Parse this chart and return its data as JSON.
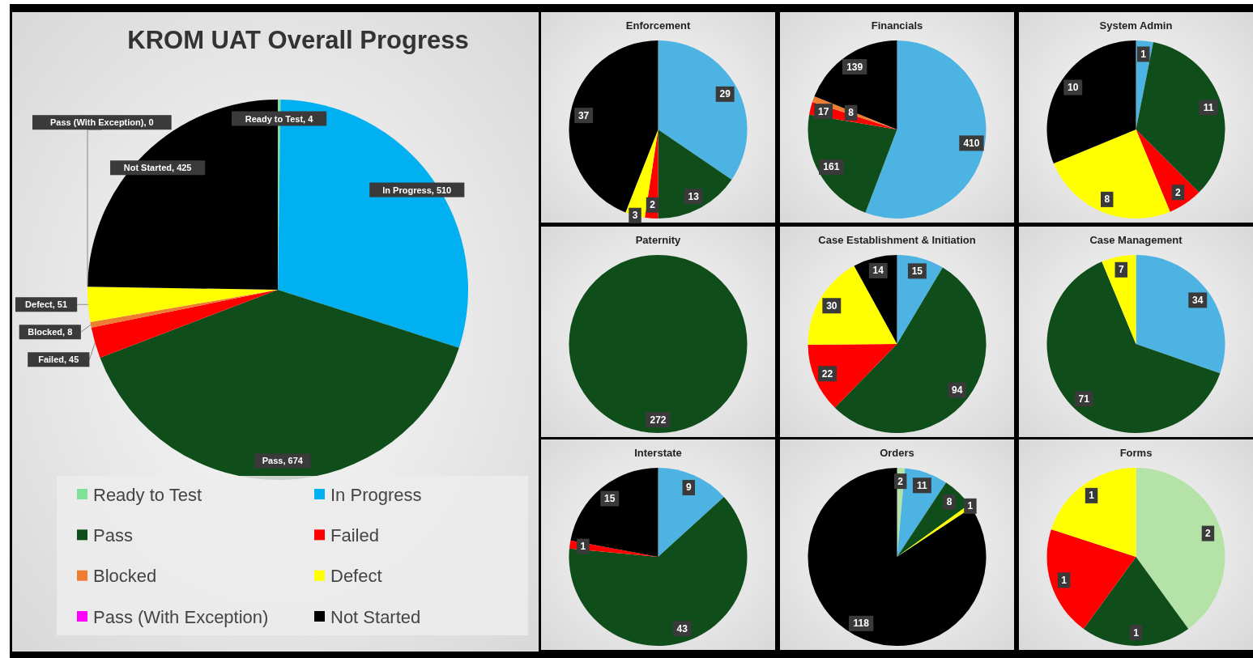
{
  "chart_data": [
    {
      "type": "pie",
      "title": "KROM UAT Overall Progress",
      "categories": [
        "Ready to Test",
        "In Progress",
        "Pass",
        "Failed",
        "Blocked",
        "Defect",
        "Pass (With Exception)",
        "Not Started"
      ],
      "values": [
        4,
        510,
        674,
        45,
        8,
        51,
        0,
        425
      ],
      "value_labels": [
        "Ready to Test, 4",
        "In Progress, 510",
        "Pass, 674",
        "Failed, 45",
        "Blocked, 8",
        "Defect, 51",
        "Pass (With Exception), 0",
        "Not Started, 425"
      ],
      "colors": [
        "#7fe09a",
        "#00b0f0",
        "#0f4d1a",
        "#ff0000",
        "#ed7d31",
        "#ffff00",
        "#ff00ff",
        "#000000"
      ],
      "legend": "bottom"
    },
    {
      "type": "pie",
      "title": "Enforcement",
      "categories": [
        null,
        null,
        null,
        null,
        null
      ],
      "values": [
        29,
        13,
        2,
        3,
        37
      ],
      "colors": [
        "#4db3e3",
        "#0f4d1a",
        "#ff0000",
        "#ffff00",
        "#000000"
      ],
      "data_labels": true
    },
    {
      "type": "pie",
      "title": "Financials",
      "categories": [
        null,
        null,
        null,
        null,
        null
      ],
      "values": [
        410,
        161,
        17,
        8,
        139
      ],
      "colors": [
        "#4db3e3",
        "#0f4d1a",
        "#ff0000",
        "#ed7d31",
        "#000000"
      ],
      "data_labels": true
    },
    {
      "type": "pie",
      "title": "System Admin",
      "categories": [
        null,
        null,
        null,
        null,
        null
      ],
      "values": [
        1,
        11,
        2,
        8,
        10
      ],
      "colors": [
        "#4db3e3",
        "#0f4d1a",
        "#ff0000",
        "#ffff00",
        "#000000"
      ],
      "data_labels": true
    },
    {
      "type": "pie",
      "title": "Paternity",
      "categories": [
        null
      ],
      "values": [
        272
      ],
      "colors": [
        "#0f4d1a"
      ],
      "data_labels": true
    },
    {
      "type": "pie",
      "title": "Case Establishment & Initiation",
      "categories": [
        null,
        null,
        null,
        null,
        null
      ],
      "values": [
        15,
        94,
        22,
        30,
        14
      ],
      "colors": [
        "#4db3e3",
        "#0f4d1a",
        "#ff0000",
        "#ffff00",
        "#000000"
      ],
      "data_labels": true
    },
    {
      "type": "pie",
      "title": "Case Management",
      "categories": [
        null,
        null,
        null
      ],
      "values": [
        34,
        71,
        7
      ],
      "colors": [
        "#4db3e3",
        "#0f4d1a",
        "#ffff00"
      ],
      "data_labels": true
    },
    {
      "type": "pie",
      "title": "Interstate",
      "categories": [
        null,
        null,
        null,
        null
      ],
      "values": [
        9,
        43,
        1,
        15
      ],
      "colors": [
        "#4db3e3",
        "#0f4d1a",
        "#ff0000",
        "#000000"
      ],
      "data_labels": true
    },
    {
      "type": "pie",
      "title": "Orders",
      "categories": [
        null,
        null,
        null,
        null,
        null
      ],
      "values": [
        2,
        11,
        8,
        1,
        118
      ],
      "colors": [
        "#b5e3a7",
        "#4db3e3",
        "#0f4d1a",
        "#ffff00",
        "#000000"
      ],
      "data_labels": true
    },
    {
      "type": "pie",
      "title": "Forms",
      "categories": [
        null,
        null,
        null,
        null
      ],
      "values": [
        2,
        1,
        1,
        1
      ],
      "colors": [
        "#b5e3a7",
        "#0f4d1a",
        "#ff0000",
        "#ffff00"
      ],
      "data_labels": true
    }
  ]
}
